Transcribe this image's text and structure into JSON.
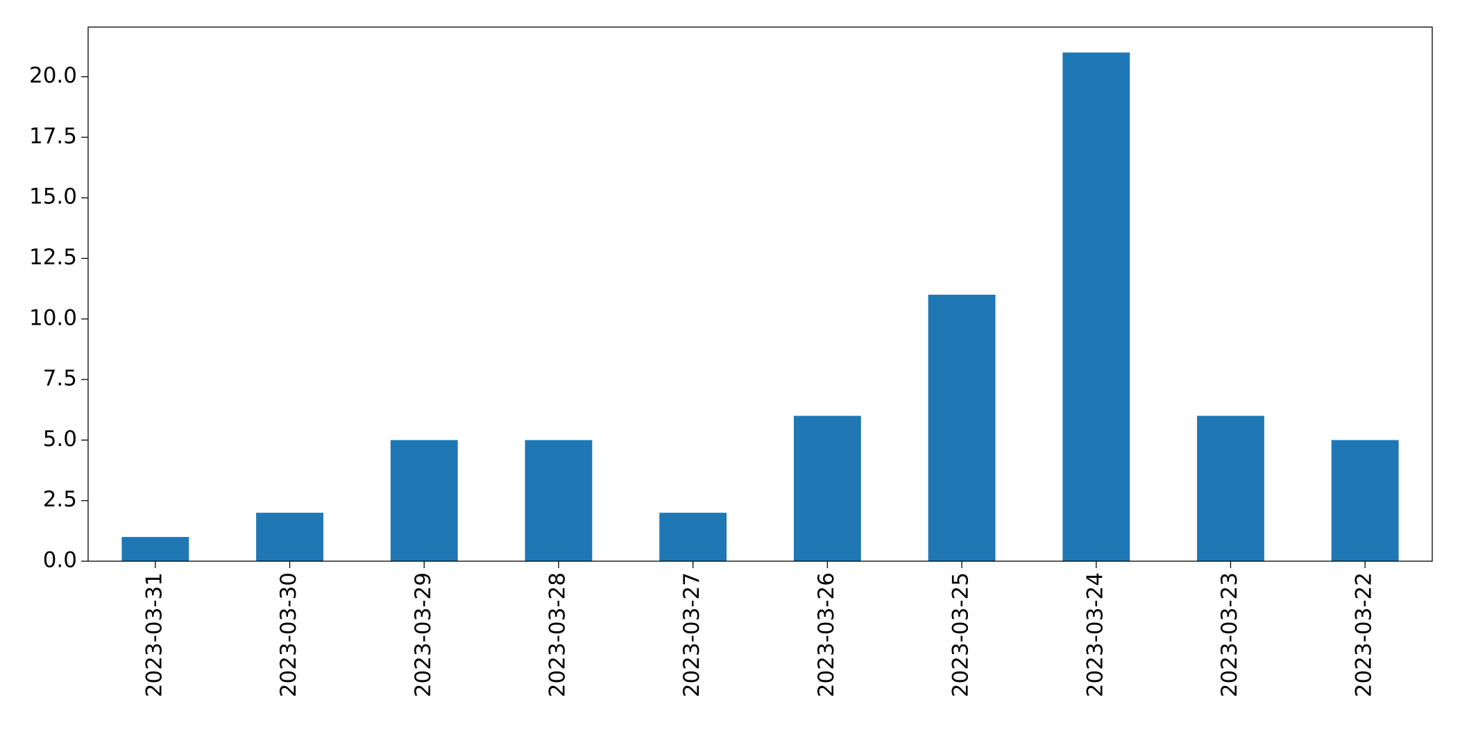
{
  "chart_data": {
    "type": "bar",
    "categories": [
      "2023-03-31",
      "2023-03-30",
      "2023-03-29",
      "2023-03-28",
      "2023-03-27",
      "2023-03-26",
      "2023-03-25",
      "2023-03-24",
      "2023-03-23",
      "2023-03-22"
    ],
    "values": [
      1,
      2,
      5,
      5,
      2,
      6,
      11,
      21,
      6,
      5
    ],
    "color": "#1f77b4",
    "ylim": [
      0,
      22.05
    ],
    "yticks": [
      {
        "value": 0,
        "label": "0.0"
      },
      2.5,
      {
        "value": 5,
        "label": "5.0"
      },
      7.5,
      {
        "value": 10,
        "label": "10.0"
      },
      12.5,
      {
        "value": 15,
        "label": "15.0"
      },
      17.5,
      {
        "value": 20,
        "label": "20.0"
      }
    ],
    "grid": false
  }
}
